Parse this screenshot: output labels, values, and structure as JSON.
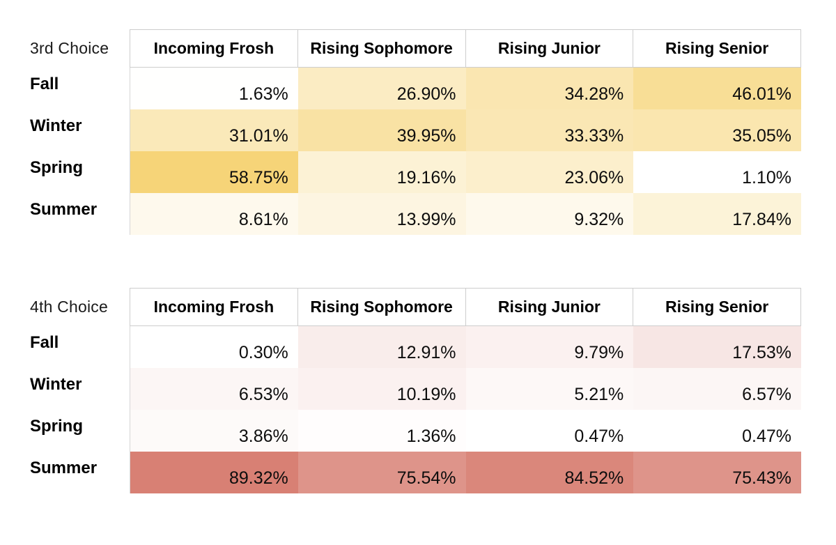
{
  "page": {
    "background": "#ffffff"
  },
  "chart_data": [
    {
      "type": "heatmap",
      "title": "3rd Choice",
      "columns": [
        "Incoming Frosh",
        "Rising Sophomore",
        "Rising Junior",
        "Rising Senior"
      ],
      "rows": [
        "Fall",
        "Winter",
        "Spring",
        "Summer"
      ],
      "values": [
        [
          1.63,
          26.9,
          34.28,
          46.01
        ],
        [
          31.01,
          39.95,
          33.33,
          35.05
        ],
        [
          58.75,
          19.16,
          23.06,
          1.1
        ],
        [
          8.61,
          13.99,
          9.32,
          17.84
        ]
      ],
      "value_format": "percent-2dp",
      "legend": "none",
      "color_scale": {
        "min_value": 1.1,
        "max_value": 58.75,
        "min_color": "#FFFFFF",
        "max_color": "#F6D478"
      }
    },
    {
      "type": "heatmap",
      "title": "4th Choice",
      "columns": [
        "Incoming Frosh",
        "Rising Sophomore",
        "Rising Junior",
        "Rising Senior"
      ],
      "rows": [
        "Fall",
        "Winter",
        "Spring",
        "Summer"
      ],
      "values": [
        [
          0.3,
          12.91,
          9.79,
          17.53
        ],
        [
          6.53,
          10.19,
          5.21,
          6.57
        ],
        [
          3.86,
          1.36,
          0.47,
          0.47
        ],
        [
          89.32,
          75.54,
          84.52,
          75.43
        ]
      ],
      "value_format": "percent-2dp",
      "legend": "none",
      "color_scale": {
        "min_value": 0.3,
        "max_value": 89.32,
        "min_color": "#FFFFFF",
        "max_color": "#D88074"
      }
    }
  ]
}
